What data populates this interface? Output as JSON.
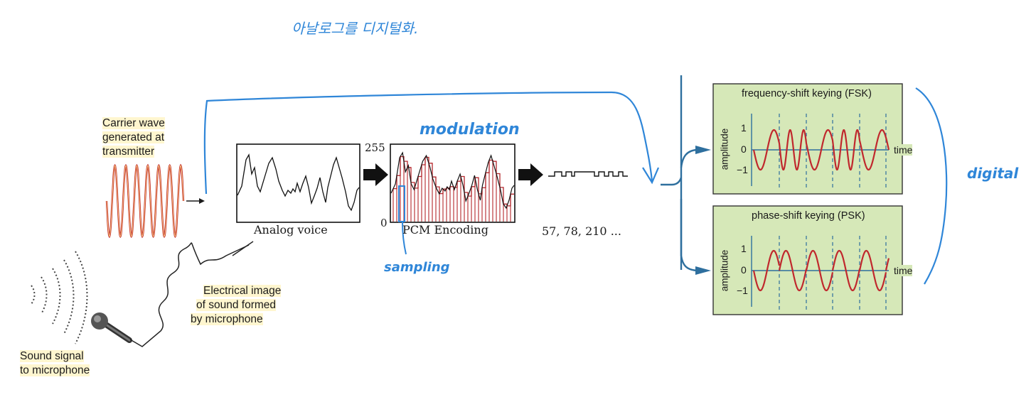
{
  "handwritten": {
    "top_note": "아날로그를 디지털화.",
    "modulation": "modulation",
    "sampling": "sampling",
    "digital": "digital"
  },
  "carrier": {
    "label_lines": [
      "Carrier wave",
      "generated at",
      "transmitter"
    ]
  },
  "analog_box": {
    "caption": "Analog voice"
  },
  "pcm_box": {
    "caption": "PCM Encoding",
    "y_max": "255",
    "y_min": "0"
  },
  "pcm_values": "57, 78, 210 ...",
  "electrical": {
    "label_lines": [
      "Electrical image",
      "of sound formed",
      "by microphone"
    ]
  },
  "sound": {
    "label_lines": [
      "Sound signal",
      "to microphone"
    ]
  },
  "fsk": {
    "title": "frequency-shift keying (FSK)",
    "ylabel": "amplitude",
    "xlabel": "time",
    "ticks": [
      "1",
      "0",
      "−1"
    ]
  },
  "psk": {
    "title": "phase-shift keying (PSK)",
    "ylabel": "amplitude",
    "xlabel": "time",
    "ticks": [
      "1",
      "0",
      "−1"
    ]
  },
  "colors": {
    "annotation_blue": "#2f86d8",
    "wave_red": "#c0282d",
    "panel_green": "#d6e8b8",
    "axis_teal": "#2e6f9e"
  }
}
